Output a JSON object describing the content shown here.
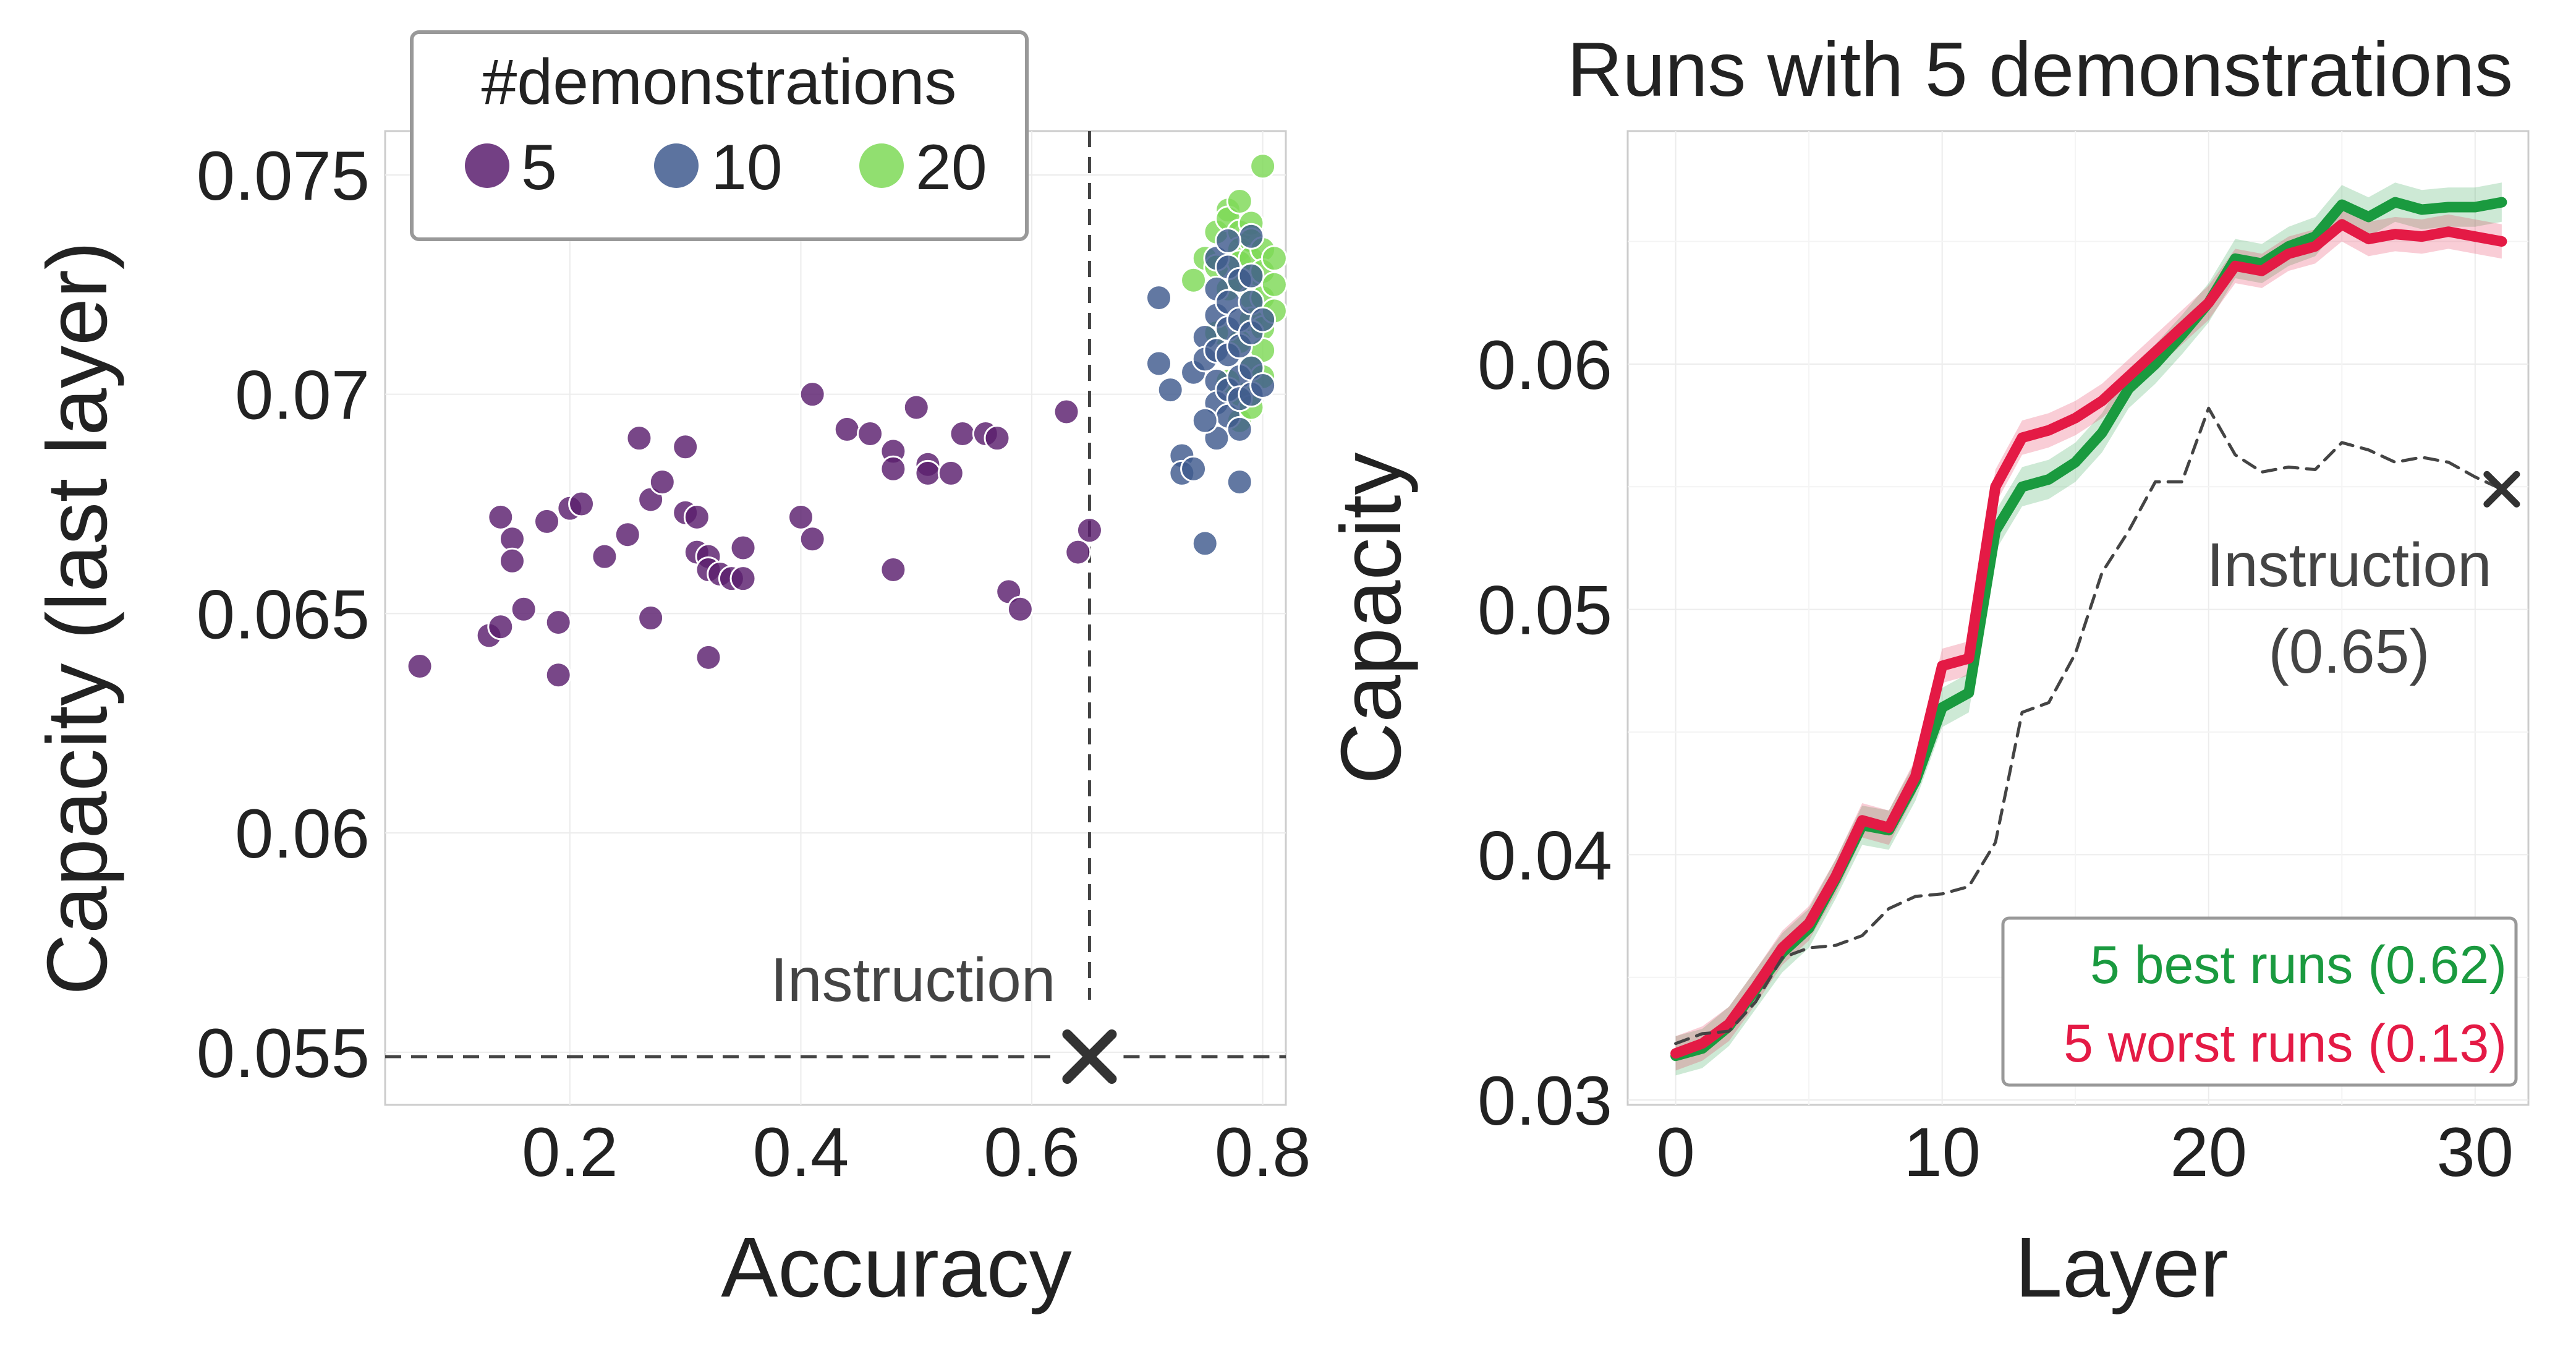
{
  "colors": {
    "demo5": "#5a1f6e",
    "demo10": "#3f5a8e",
    "demo20": "#7ed957",
    "best": "#1a9a3f",
    "worst": "#e41a45",
    "instruction": "#444444",
    "text": "#222222",
    "grid": "#ececec",
    "frame": "#cccccc"
  },
  "chart_data": [
    {
      "type": "scatter",
      "title": "",
      "xlabel": "Accuracy",
      "ylabel": "Capacity (last layer)",
      "xlim": [
        0.04,
        0.82
      ],
      "ylim": [
        0.0538,
        0.076
      ],
      "xticks": [
        0.2,
        0.4,
        0.6,
        0.8
      ],
      "xtick_labels": [
        "0.2",
        "0.4",
        "0.6",
        "0.8"
      ],
      "yticks": [
        0.055,
        0.06,
        0.065,
        0.07,
        0.075
      ],
      "ytick_labels": [
        "0.055",
        "0.06",
        "0.065",
        "0.07",
        "0.075"
      ],
      "grid": true,
      "legend": {
        "title": "#demonstrations",
        "placement": "top-left",
        "entries": [
          {
            "label": "5",
            "color_key": "demo5"
          },
          {
            "label": "10",
            "color_key": "demo10"
          },
          {
            "label": "20",
            "color_key": "demo20"
          }
        ]
      },
      "instruction": {
        "label": "Instruction",
        "accuracy": 0.65,
        "capacity": 0.0549
      },
      "series": [
        {
          "name": "5",
          "color_key": "demo5",
          "points": [
            [
              0.07,
              0.0638
            ],
            [
              0.13,
              0.0645
            ],
            [
              0.14,
              0.0647
            ],
            [
              0.16,
              0.0651
            ],
            [
              0.19,
              0.0648
            ],
            [
              0.19,
              0.0636
            ],
            [
              0.14,
              0.0672
            ],
            [
              0.15,
              0.0667
            ],
            [
              0.15,
              0.0662
            ],
            [
              0.18,
              0.0671
            ],
            [
              0.2,
              0.0674
            ],
            [
              0.21,
              0.0675
            ],
            [
              0.23,
              0.0663
            ],
            [
              0.25,
              0.0668
            ],
            [
              0.26,
              0.069
            ],
            [
              0.27,
              0.0676
            ],
            [
              0.28,
              0.068
            ],
            [
              0.3,
              0.0688
            ],
            [
              0.3,
              0.0673
            ],
            [
              0.31,
              0.0672
            ],
            [
              0.31,
              0.0664
            ],
            [
              0.32,
              0.0663
            ],
            [
              0.32,
              0.066
            ],
            [
              0.33,
              0.0659
            ],
            [
              0.34,
              0.0658
            ],
            [
              0.35,
              0.0658
            ],
            [
              0.35,
              0.0665
            ],
            [
              0.27,
              0.0649
            ],
            [
              0.32,
              0.064
            ],
            [
              0.4,
              0.0672
            ],
            [
              0.41,
              0.0667
            ],
            [
              0.41,
              0.07
            ],
            [
              0.44,
              0.0692
            ],
            [
              0.46,
              0.0691
            ],
            [
              0.48,
              0.0687
            ],
            [
              0.48,
              0.0683
            ],
            [
              0.48,
              0.066
            ],
            [
              0.5,
              0.0697
            ],
            [
              0.51,
              0.0684
            ],
            [
              0.51,
              0.0682
            ],
            [
              0.53,
              0.0682
            ],
            [
              0.54,
              0.0691
            ],
            [
              0.56,
              0.0691
            ],
            [
              0.57,
              0.069
            ],
            [
              0.58,
              0.0655
            ],
            [
              0.59,
              0.0651
            ],
            [
              0.63,
              0.0696
            ],
            [
              0.64,
              0.0664
            ],
            [
              0.65,
              0.0669
            ]
          ]
        },
        {
          "name": "20",
          "color_key": "demo20",
          "points": [
            [
              0.74,
              0.0726
            ],
            [
              0.75,
              0.0731
            ],
            [
              0.76,
              0.0737
            ],
            [
              0.76,
              0.0729
            ],
            [
              0.77,
              0.0742
            ],
            [
              0.77,
              0.074
            ],
            [
              0.77,
              0.0724
            ],
            [
              0.78,
              0.0744
            ],
            [
              0.78,
              0.0737
            ],
            [
              0.78,
              0.0733
            ],
            [
              0.78,
              0.073
            ],
            [
              0.78,
              0.0726
            ],
            [
              0.79,
              0.0739
            ],
            [
              0.79,
              0.0735
            ],
            [
              0.79,
              0.0731
            ],
            [
              0.79,
              0.0727
            ],
            [
              0.79,
              0.0722
            ],
            [
              0.79,
              0.0717
            ],
            [
              0.8,
              0.0733
            ],
            [
              0.8,
              0.0728
            ],
            [
              0.8,
              0.0722
            ],
            [
              0.8,
              0.0715
            ],
            [
              0.8,
              0.071
            ],
            [
              0.8,
              0.0752
            ],
            [
              0.81,
              0.0731
            ],
            [
              0.81,
              0.0725
            ],
            [
              0.81,
              0.0719
            ],
            [
              0.78,
              0.0712
            ],
            [
              0.79,
              0.0706
            ],
            [
              0.78,
              0.07
            ],
            [
              0.78,
              0.0694
            ],
            [
              0.79,
              0.0697
            ],
            [
              0.77,
              0.0703
            ],
            [
              0.76,
              0.0714
            ],
            [
              0.8,
              0.0704
            ]
          ]
        },
        {
          "name": "10",
          "color_key": "demo10",
          "points": [
            [
              0.71,
              0.0722
            ],
            [
              0.71,
              0.0707
            ],
            [
              0.72,
              0.0701
            ],
            [
              0.73,
              0.0686
            ],
            [
              0.73,
              0.0682
            ],
            [
              0.74,
              0.0683
            ],
            [
              0.74,
              0.0705
            ],
            [
              0.75,
              0.0713
            ],
            [
              0.75,
              0.0708
            ],
            [
              0.75,
              0.0666
            ],
            [
              0.76,
              0.0731
            ],
            [
              0.76,
              0.0724
            ],
            [
              0.76,
              0.0718
            ],
            [
              0.76,
              0.071
            ],
            [
              0.76,
              0.0703
            ],
            [
              0.76,
              0.0698
            ],
            [
              0.77,
              0.0729
            ],
            [
              0.77,
              0.0721
            ],
            [
              0.77,
              0.0715
            ],
            [
              0.77,
              0.0709
            ],
            [
              0.77,
              0.0701
            ],
            [
              0.77,
              0.0695
            ],
            [
              0.78,
              0.0726
            ],
            [
              0.78,
              0.0717
            ],
            [
              0.78,
              0.0711
            ],
            [
              0.78,
              0.0704
            ],
            [
              0.78,
              0.0699
            ],
            [
              0.78,
              0.068
            ],
            [
              0.79,
              0.0736
            ],
            [
              0.79,
              0.0727
            ],
            [
              0.79,
              0.0721
            ],
            [
              0.79,
              0.0714
            ],
            [
              0.79,
              0.0706
            ],
            [
              0.79,
              0.07
            ],
            [
              0.77,
              0.0735
            ],
            [
              0.76,
              0.069
            ],
            [
              0.75,
              0.0694
            ],
            [
              0.8,
              0.0702
            ],
            [
              0.8,
              0.0717
            ],
            [
              0.78,
              0.0692
            ]
          ]
        }
      ]
    },
    {
      "type": "line",
      "title": "Runs with 5 demonstrations",
      "xlabel": "Layer",
      "ylabel": "Capacity",
      "xlim": [
        -1.8,
        32
      ],
      "ylim": [
        0.0298,
        0.0695
      ],
      "xticks": [
        0,
        10,
        20,
        30
      ],
      "xtick_labels": [
        "0",
        "10",
        "20",
        "30"
      ],
      "yticks": [
        0.03,
        0.04,
        0.05,
        0.06
      ],
      "ytick_labels": [
        "0.03",
        "0.04",
        "0.05",
        "0.06"
      ],
      "grid": true,
      "legend": {
        "placement": "bottom-right",
        "entries": [
          {
            "label": "5 best runs (0.62)",
            "color_key": "best"
          },
          {
            "label": "5 worst runs (0.13)",
            "color_key": "worst"
          }
        ]
      },
      "x": [
        0,
        1,
        2,
        3,
        4,
        5,
        6,
        7,
        8,
        9,
        10,
        11,
        12,
        13,
        14,
        15,
        16,
        17,
        18,
        19,
        20,
        21,
        22,
        23,
        24,
        25,
        26,
        27,
        28,
        29,
        30,
        31
      ],
      "series": [
        {
          "name": "5 best runs (0.62)",
          "color_key": "best",
          "values": [
            0.0318,
            0.0321,
            0.033,
            0.0345,
            0.036,
            0.037,
            0.039,
            0.0412,
            0.041,
            0.043,
            0.046,
            0.0466,
            0.0532,
            0.055,
            0.0553,
            0.056,
            0.0572,
            0.059,
            0.06,
            0.0612,
            0.0625,
            0.0643,
            0.0641,
            0.0648,
            0.0652,
            0.0665,
            0.066,
            0.0666,
            0.0663,
            0.0664,
            0.0664,
            0.0666
          ],
          "band": 0.0008
        },
        {
          "name": "5 worst runs (0.13)",
          "color_key": "worst",
          "values": [
            0.0319,
            0.0323,
            0.0331,
            0.0346,
            0.0362,
            0.0372,
            0.0391,
            0.0414,
            0.0411,
            0.0432,
            0.0477,
            0.048,
            0.055,
            0.057,
            0.0573,
            0.0578,
            0.0585,
            0.0595,
            0.0605,
            0.0615,
            0.0625,
            0.064,
            0.0638,
            0.0645,
            0.0648,
            0.0657,
            0.0651,
            0.0653,
            0.0652,
            0.0654,
            0.0652,
            0.065
          ],
          "band": 0.0007
        },
        {
          "name": "Instruction",
          "color_key": "instruction",
          "dashed": true,
          "values": [
            0.0323,
            0.0327,
            0.0328,
            0.034,
            0.0358,
            0.0362,
            0.0363,
            0.0367,
            0.0378,
            0.0383,
            0.0384,
            0.0387,
            0.0405,
            0.0458,
            0.0462,
            0.0482,
            0.0515,
            0.0532,
            0.0552,
            0.0552,
            0.0582,
            0.0563,
            0.0556,
            0.0558,
            0.0557,
            0.0568,
            0.0565,
            0.056,
            0.0562,
            0.056,
            0.0554,
            0.0549
          ]
        }
      ],
      "instruction": {
        "label": "Instruction",
        "score": "(0.65)",
        "layer": 31,
        "capacity": 0.0549
      }
    }
  ]
}
